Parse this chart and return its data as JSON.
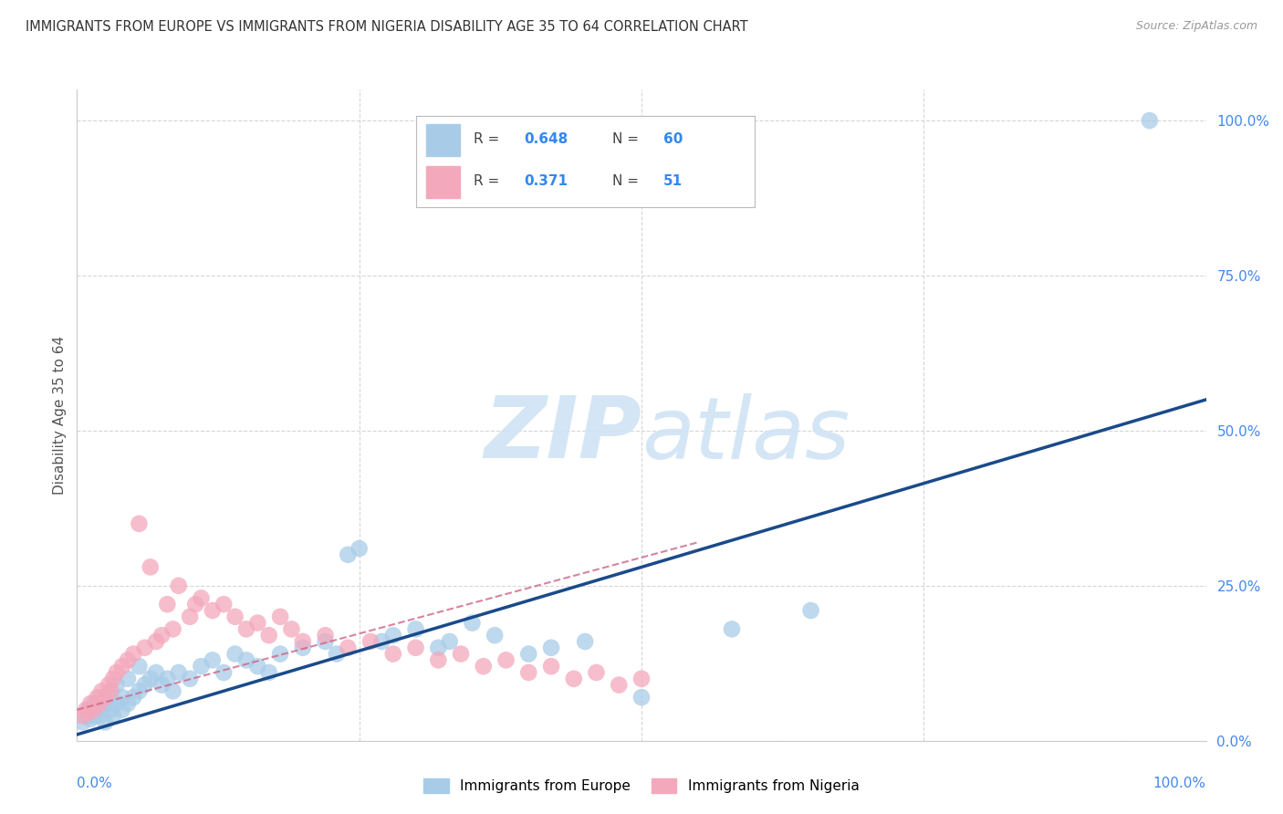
{
  "title": "IMMIGRANTS FROM EUROPE VS IMMIGRANTS FROM NIGERIA DISABILITY AGE 35 TO 64 CORRELATION CHART",
  "source": "Source: ZipAtlas.com",
  "ylabel": "Disability Age 35 to 64",
  "ytick_values": [
    0,
    25,
    50,
    75,
    100
  ],
  "xlim": [
    0,
    100
  ],
  "ylim": [
    0,
    105
  ],
  "blue_color": "#a8cce8",
  "pink_color": "#f4a8bc",
  "blue_line_color": "#1a4a8a",
  "pink_line_color": "#cc6688",
  "grid_color": "#cccccc",
  "watermark_color": "#d0e4f4",
  "legend_R_blue": "0.648",
  "legend_N_blue": "60",
  "legend_R_pink": "0.371",
  "legend_N_pink": "51",
  "blue_points_x": [
    0.5,
    0.8,
    1.0,
    1.2,
    1.5,
    1.5,
    1.8,
    2.0,
    2.0,
    2.2,
    2.5,
    2.5,
    2.8,
    3.0,
    3.0,
    3.2,
    3.5,
    3.5,
    4.0,
    4.0,
    4.5,
    4.5,
    5.0,
    5.5,
    5.5,
    6.0,
    6.5,
    7.0,
    7.5,
    8.0,
    8.5,
    9.0,
    10.0,
    11.0,
    12.0,
    13.0,
    14.0,
    15.0,
    16.0,
    17.0,
    18.0,
    20.0,
    22.0,
    23.0,
    24.0,
    25.0,
    27.0,
    28.0,
    30.0,
    32.0,
    33.0,
    35.0,
    37.0,
    40.0,
    42.0,
    45.0,
    50.0,
    58.0,
    65.0,
    95.0
  ],
  "blue_points_y": [
    3.0,
    4.0,
    5.0,
    3.5,
    4.0,
    6.0,
    5.0,
    4.0,
    7.0,
    5.5,
    6.0,
    3.0,
    7.0,
    5.0,
    8.0,
    4.0,
    6.0,
    9.0,
    5.0,
    7.0,
    6.0,
    10.0,
    7.0,
    8.0,
    12.0,
    9.0,
    10.0,
    11.0,
    9.0,
    10.0,
    8.0,
    11.0,
    10.0,
    12.0,
    13.0,
    11.0,
    14.0,
    13.0,
    12.0,
    11.0,
    14.0,
    15.0,
    16.0,
    14.0,
    30.0,
    31.0,
    16.0,
    17.0,
    18.0,
    15.0,
    16.0,
    19.0,
    17.0,
    14.0,
    15.0,
    16.0,
    7.0,
    18.0,
    21.0,
    100.0
  ],
  "pink_points_x": [
    0.5,
    0.8,
    1.0,
    1.2,
    1.5,
    1.8,
    2.0,
    2.2,
    2.5,
    2.8,
    3.0,
    3.2,
    3.5,
    4.0,
    4.5,
    5.0,
    5.5,
    6.0,
    6.5,
    7.0,
    7.5,
    8.0,
    8.5,
    9.0,
    10.0,
    10.5,
    11.0,
    12.0,
    13.0,
    14.0,
    15.0,
    16.0,
    17.0,
    18.0,
    19.0,
    20.0,
    22.0,
    24.0,
    26.0,
    28.0,
    30.0,
    32.0,
    34.0,
    36.0,
    38.0,
    40.0,
    42.0,
    44.0,
    46.0,
    48.0,
    50.0
  ],
  "pink_points_y": [
    4.0,
    5.0,
    4.5,
    6.0,
    5.0,
    7.0,
    6.0,
    8.0,
    7.0,
    9.0,
    8.0,
    10.0,
    11.0,
    12.0,
    13.0,
    14.0,
    35.0,
    15.0,
    28.0,
    16.0,
    17.0,
    22.0,
    18.0,
    25.0,
    20.0,
    22.0,
    23.0,
    21.0,
    22.0,
    20.0,
    18.0,
    19.0,
    17.0,
    20.0,
    18.0,
    16.0,
    17.0,
    15.0,
    16.0,
    14.0,
    15.0,
    13.0,
    14.0,
    12.0,
    13.0,
    11.0,
    12.0,
    10.0,
    11.0,
    9.0,
    10.0
  ],
  "blue_trendline_x": [
    0,
    100
  ],
  "blue_trendline_y": [
    1,
    55
  ],
  "pink_trendline_x": [
    0,
    55
  ],
  "pink_trendline_y": [
    5,
    32
  ]
}
